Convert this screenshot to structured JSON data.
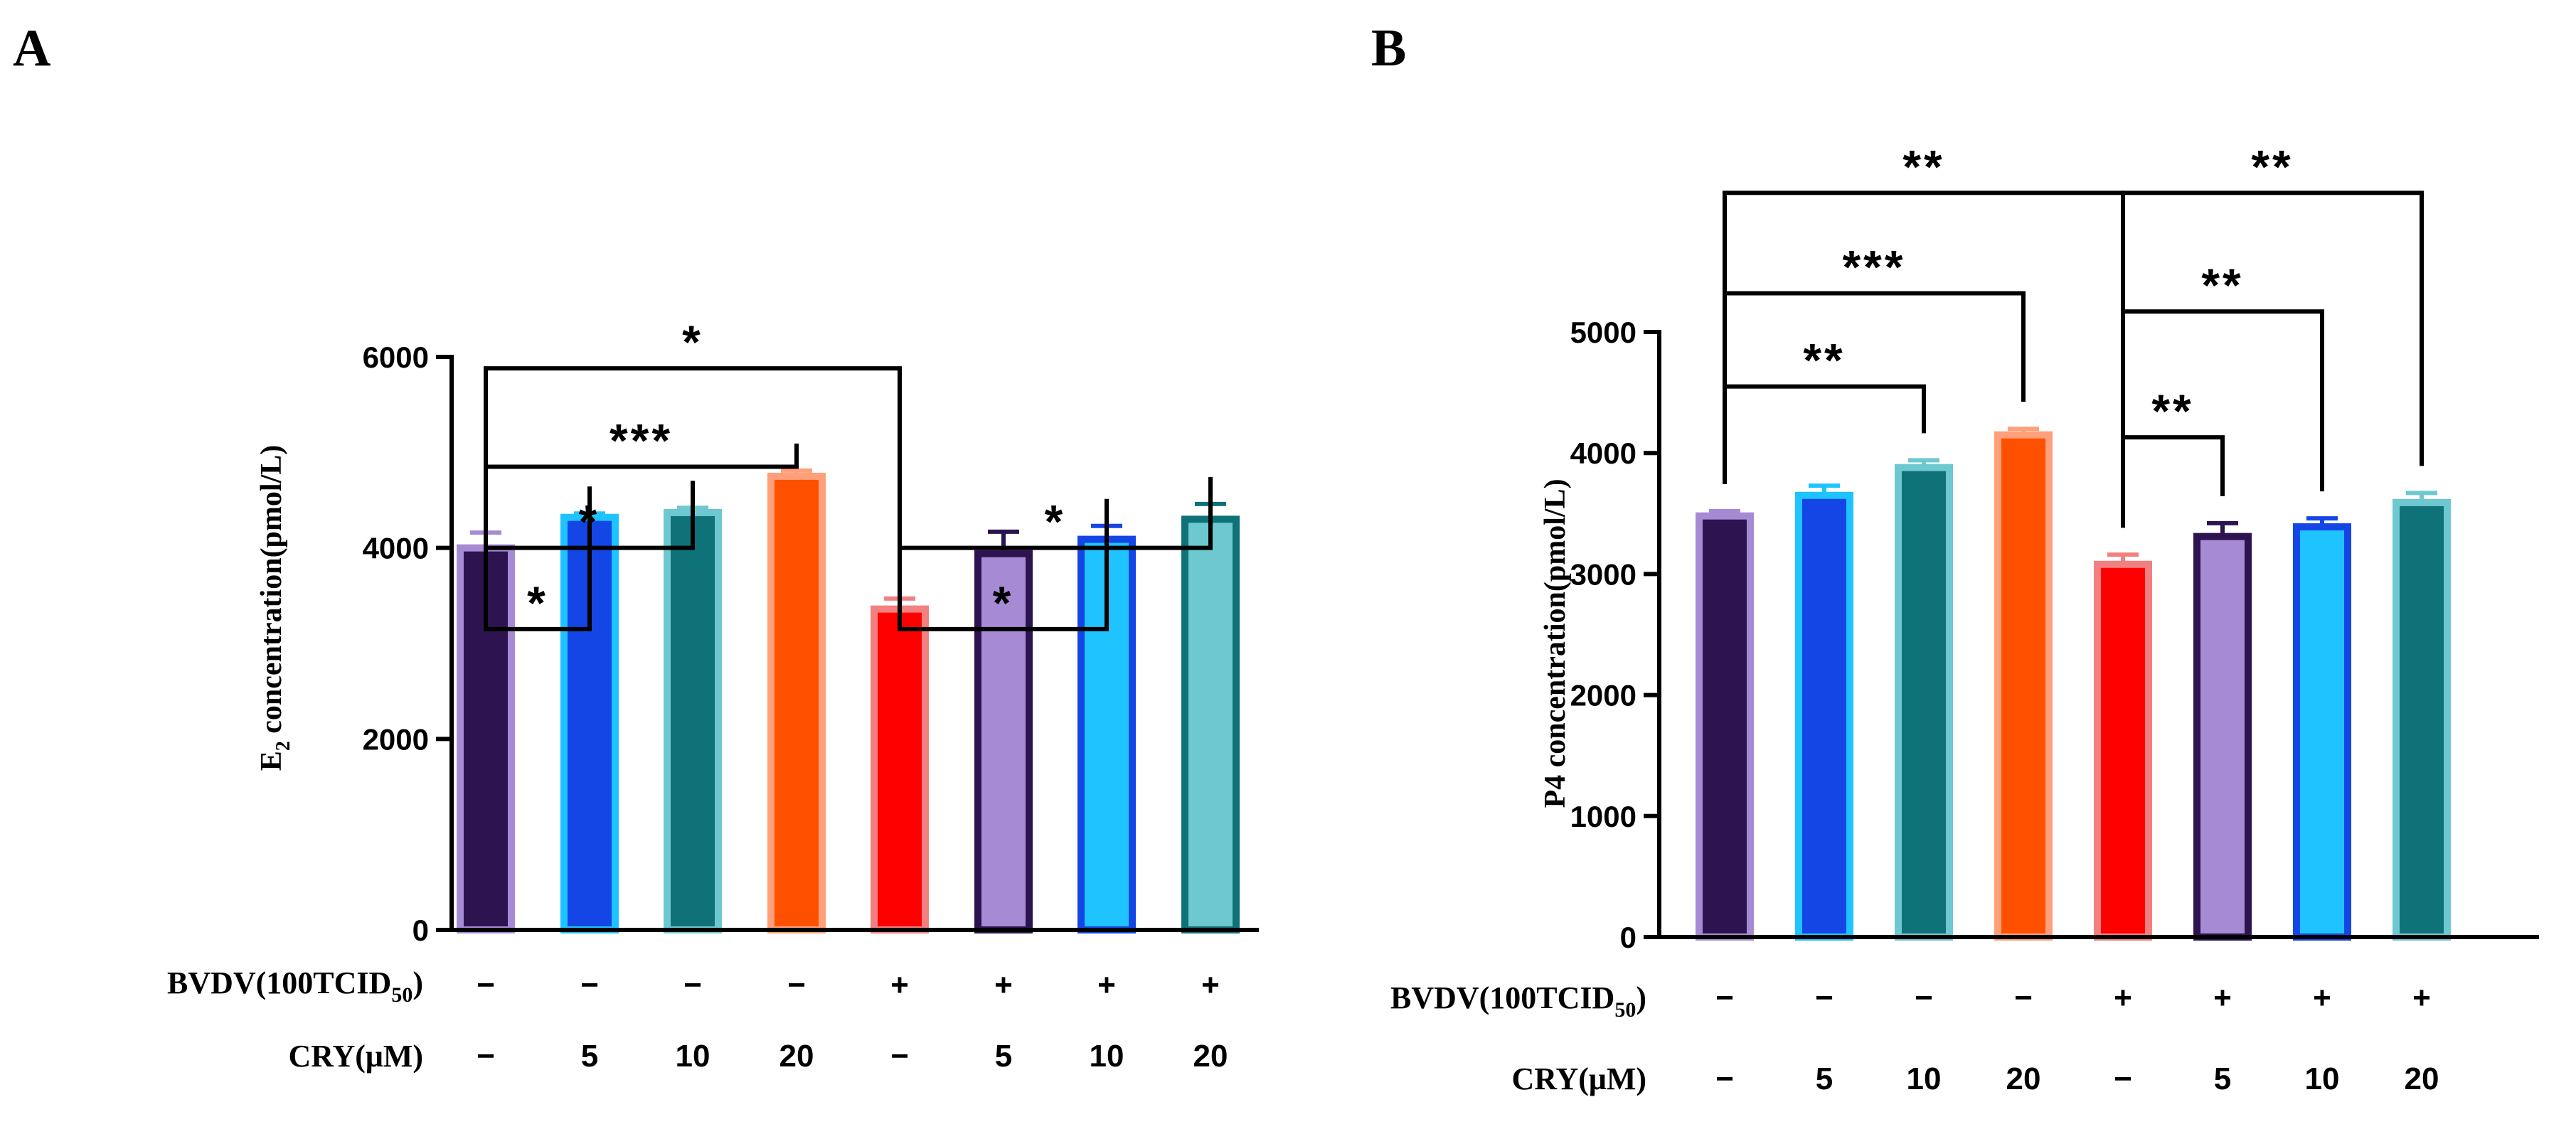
{
  "chart_data": [
    {
      "type": "bar",
      "panel_label": "A",
      "ylabel_main": "E",
      "ylabel_sub": "2",
      "ylabel_rest": " concentration(pmol/L)",
      "ylim": [
        0,
        6000
      ],
      "yticks": [
        "0",
        "2000",
        "4000",
        "6000"
      ],
      "ytick_values": [
        0,
        2000,
        4000,
        6000
      ],
      "bvdv_label_main": "BVDV(100TCID",
      "bvdv_label_sub": "50",
      "bvdv_label_end": ")",
      "cry_label": "CRY(μM)",
      "bvdv_row": [
        "−",
        "−",
        "−",
        "−",
        "+",
        "+",
        "+",
        "+"
      ],
      "cry_row": [
        "−",
        "5",
        "10",
        "20",
        "−",
        "5",
        "10",
        "20"
      ],
      "values": [
        4000,
        4320,
        4370,
        4750,
        3360,
        3940,
        4090,
        4300
      ],
      "errors": [
        160,
        40,
        50,
        60,
        110,
        230,
        140,
        160
      ],
      "fill_colors": [
        "#2d1450",
        "#1446e6",
        "#0e7278",
        "#ff5000",
        "#ff0000",
        "#a68bd4",
        "#1ec3ff",
        "#6ec8d0"
      ],
      "stroke_colors": [
        "#a68bd4",
        "#1ec3ff",
        "#6ec8d0",
        "#ffa07a",
        "#f28080",
        "#2d1450",
        "#1446e6",
        "#0e7278"
      ],
      "significance": [
        {
          "from": 0,
          "to": 1,
          "label": "*",
          "level": 3150
        },
        {
          "from": 0,
          "to": 2,
          "label": "*",
          "level": 4000
        },
        {
          "from": 0,
          "to": 3,
          "label": "***",
          "level": 4850
        },
        {
          "from": 0,
          "to": 4,
          "label": "*",
          "level": 5880
        },
        {
          "from": 4,
          "to": 6,
          "label": "*",
          "level": 3150
        },
        {
          "from": 4,
          "to": 7,
          "label": "*",
          "level": 4000
        }
      ]
    },
    {
      "type": "bar",
      "panel_label": "B",
      "ylabel_main": "P4 concentration(pmol/L)",
      "ylim": [
        0,
        5000
      ],
      "yticks": [
        "0",
        "1000",
        "2000",
        "3000",
        "4000",
        "5000"
      ],
      "ytick_values": [
        0,
        1000,
        2000,
        3000,
        4000,
        5000
      ],
      "bvdv_label_main": "BVDV(100TCID",
      "bvdv_label_sub": "50",
      "bvdv_label_end": ")",
      "cry_label": "CRY(μM)",
      "bvdv_row": [
        "−",
        "−",
        "−",
        "−",
        "+",
        "+",
        "+",
        "+"
      ],
      "cry_row": [
        "−",
        "5",
        "10",
        "20",
        "−",
        "5",
        "10",
        "20"
      ],
      "values": [
        3480,
        3650,
        3880,
        4150,
        3080,
        3310,
        3390,
        3590
      ],
      "errors": [
        40,
        80,
        60,
        50,
        80,
        110,
        70,
        80
      ],
      "fill_colors": [
        "#2d1450",
        "#1446e6",
        "#0e7278",
        "#ff5000",
        "#ff0000",
        "#a68bd4",
        "#1ec3ff",
        "#0e7278"
      ],
      "stroke_colors": [
        "#a68bd4",
        "#1ec3ff",
        "#6ec8d0",
        "#ffa07a",
        "#f28080",
        "#2d1450",
        "#1446e6",
        "#6ec8d0"
      ],
      "significance": [
        {
          "from": 0,
          "to": 2,
          "label": "**",
          "level": 4550
        },
        {
          "from": 0,
          "to": 3,
          "label": "***",
          "level": 5320
        },
        {
          "from": 0,
          "to": 4,
          "label": "**",
          "level": 6150
        },
        {
          "from": 4,
          "to": 5,
          "label": "**",
          "level": 4130
        },
        {
          "from": 4,
          "to": 6,
          "label": "**",
          "level": 5170
        },
        {
          "from": 4,
          "to": 7,
          "label": "**",
          "level": 6150
        }
      ]
    }
  ]
}
